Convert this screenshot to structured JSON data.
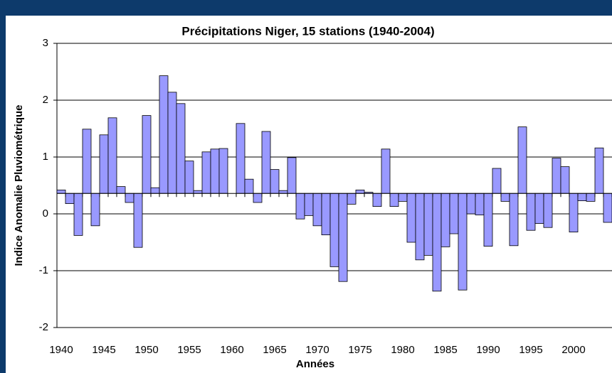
{
  "chart_data": {
    "type": "bar",
    "title": "Précipitations Niger, 15 stations (1940-2004)",
    "x_label": "Années",
    "y_label": "Indice Anomalie Pluviométrique",
    "categories": [
      "1940",
      null,
      null,
      null,
      null,
      "1945",
      null,
      null,
      null,
      null,
      "1950",
      null,
      null,
      null,
      null,
      "1955",
      null,
      null,
      null,
      null,
      "1960",
      null,
      null,
      null,
      null,
      "1965",
      null,
      null,
      null,
      null,
      "1970",
      null,
      null,
      null,
      null,
      "1975",
      null,
      null,
      null,
      null,
      "1980",
      null,
      null,
      null,
      null,
      "1985",
      null,
      null,
      null,
      null,
      "1990",
      null,
      null,
      null,
      null,
      "1995",
      null,
      null,
      null,
      null,
      "2000",
      null,
      null,
      null,
      null
    ],
    "values": [
      0.42,
      0.18,
      -0.38,
      1.49,
      -0.21,
      1.39,
      1.69,
      0.48,
      0.2,
      -0.59,
      1.73,
      0.46,
      2.43,
      2.14,
      1.94,
      0.93,
      0.41,
      1.09,
      1.14,
      1.15,
      0.36,
      1.59,
      0.61,
      0.2,
      1.45,
      0.78,
      0.41,
      0.99,
      -0.09,
      -0.03,
      -0.21,
      -0.37,
      -0.93,
      -1.19,
      0.17,
      0.42,
      0.38,
      0.13,
      1.14,
      0.13,
      0.22,
      -0.5,
      -0.81,
      -0.73,
      -1.36,
      -0.58,
      -0.35,
      -1.34,
      0.0,
      -0.02,
      -0.57,
      0.8,
      0.22,
      -0.56,
      1.53,
      -0.29,
      -0.17,
      -0.24,
      0.98,
      0.83,
      -0.32,
      0.23,
      0.22,
      1.16,
      -0.15
    ],
    "color": "#9999ff",
    "baseline": 0.36,
    "ylim": [
      -2,
      3
    ],
    "yticks": [
      -2,
      -1,
      0,
      1,
      2,
      3
    ],
    "grid": true
  }
}
